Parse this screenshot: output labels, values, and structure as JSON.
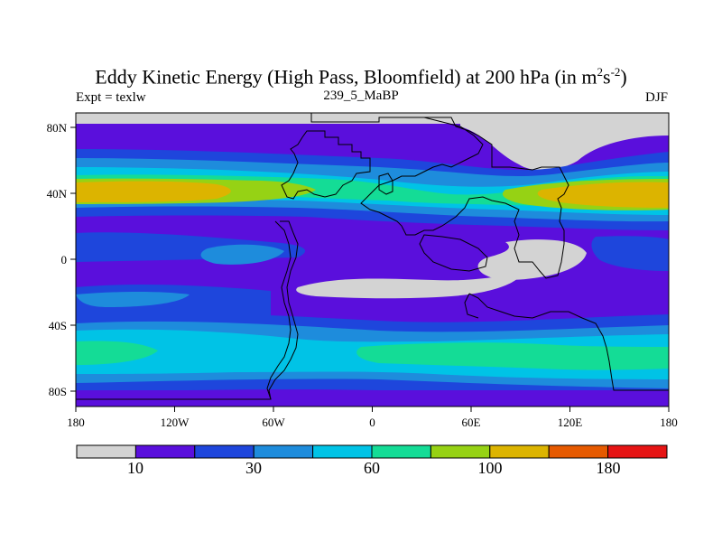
{
  "plot": {
    "title_main": "Eddy Kinetic Energy (High Pass, Bloomfield) at 200 hPa (in m",
    "title_sup1": "2",
    "title_mid": "s",
    "title_sup2": "-2",
    "title_end": ")",
    "left_label": "Expt = texlw",
    "center_label": "239_5_MaBP",
    "right_label": "DJF"
  },
  "axes": {
    "x_ticks": [
      "180",
      "120W",
      "60W",
      "0",
      "60E",
      "120E",
      "180"
    ],
    "y_ticks": [
      "80N",
      "40N",
      "0",
      "40S",
      "80S"
    ]
  },
  "colorbar": {
    "colors": [
      "#d3d3d3",
      "#5a0fdc",
      "#1e46dc",
      "#1e8cdc",
      "#00c3e6",
      "#14dc96",
      "#96d214",
      "#dcb400",
      "#e65a00",
      "#e61414"
    ],
    "labels": [
      "10",
      "30",
      "60",
      "100",
      "180"
    ]
  }
}
